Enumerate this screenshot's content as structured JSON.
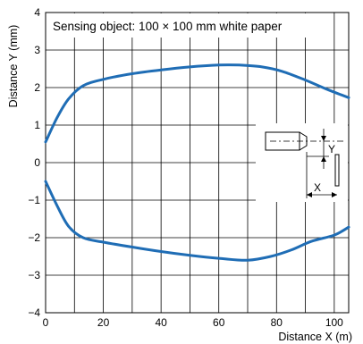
{
  "chart_data": {
    "type": "line",
    "title": "",
    "xlabel": "Distance X (m)",
    "ylabel": "Distance Y (mm)",
    "xlim": [
      0,
      105
    ],
    "ylim": [
      -4,
      4
    ],
    "x_ticks": [
      "0",
      "20",
      "40",
      "60",
      "80",
      "100"
    ],
    "y_ticks": [
      "4",
      "3",
      "2",
      "1",
      "0",
      "−1",
      "−2",
      "−3",
      "−4"
    ],
    "grid": true,
    "legend": "none",
    "annotation": "Sensing object: 100 × 100 mm white paper",
    "series": [
      {
        "color": "#1f6db5",
        "x": [
          0,
          4,
          8,
          13,
          20,
          30,
          40,
          50,
          60,
          67,
          75,
          82,
          90,
          97,
          105
        ],
        "y": [
          0.55,
          1.2,
          1.7,
          2.05,
          2.22,
          2.37,
          2.47,
          2.55,
          2.6,
          2.6,
          2.55,
          2.43,
          2.2,
          1.97,
          1.73
        ]
      },
      {
        "color": "#1f6db5",
        "x": [
          0,
          4,
          8,
          13,
          20,
          30,
          40,
          50,
          60,
          70,
          78,
          85,
          92,
          100,
          105
        ],
        "y": [
          -0.5,
          -1.15,
          -1.7,
          -2.0,
          -2.12,
          -2.25,
          -2.37,
          -2.47,
          -2.55,
          -2.6,
          -2.5,
          -2.33,
          -2.1,
          -1.93,
          -1.72
        ]
      }
    ],
    "inset": {
      "label_y": "Y",
      "label_x": "X"
    }
  }
}
